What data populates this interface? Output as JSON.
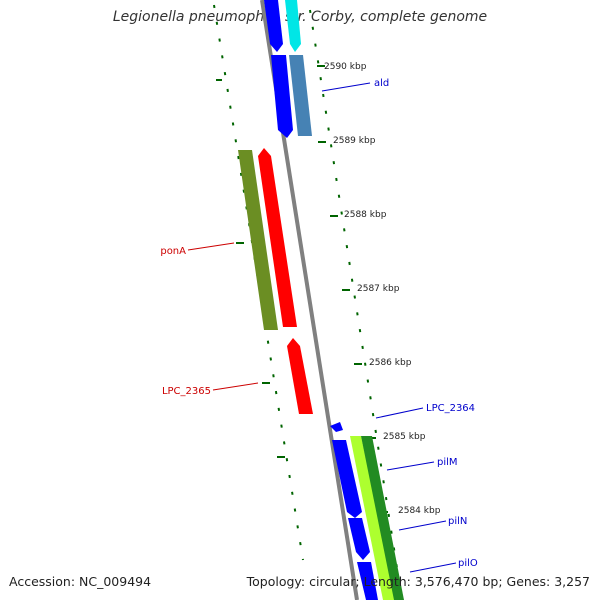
{
  "title": "Legionella pneumophila str. Corby, complete genome",
  "footer": {
    "accession": "Accession: NC_009494",
    "summary": "Topology: circular; Length: 3,576,470 bp; Genes: 3,257"
  },
  "ticks": [
    "2590 kbp",
    "2589 kbp",
    "2588 kbp",
    "2587 kbp",
    "2586 kbp",
    "2585 kbp",
    "2584 kbp"
  ],
  "genes": [
    {
      "name": "ald",
      "color": "#0000cc"
    },
    {
      "name": "ponA",
      "color": "#cc0000"
    },
    {
      "name": "LPC_2365",
      "color": "#cc0000"
    },
    {
      "name": "LPC_2364",
      "color": "#0000cc"
    },
    {
      "name": "pilM",
      "color": "#0000cc"
    },
    {
      "name": "pilN",
      "color": "#0000cc"
    },
    {
      "name": "pilO",
      "color": "#0000cc"
    }
  ],
  "colors": {
    "backbone": "#808080",
    "forward_cds": "#0000ff",
    "forward_cds_alt": "#00e6e6",
    "forward_cds_steel": "#4682b4",
    "reverse_cds": "#ff0000",
    "olive_track": "#6b8e23",
    "green_track": "#228b22",
    "lightgreen_track": "#adff2f",
    "tick_mark": "#006400"
  }
}
